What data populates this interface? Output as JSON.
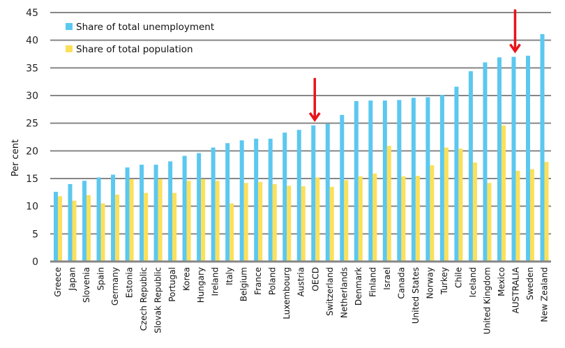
{
  "chart_data": {
    "type": "bar",
    "title": "",
    "xlabel": "",
    "ylabel": "Per cent",
    "ylim": [
      0,
      45
    ],
    "yticks": [
      0,
      5,
      10,
      15,
      20,
      25,
      30,
      35,
      40,
      45
    ],
    "grid": true,
    "legend_position": "top-left",
    "categories": [
      "Greece",
      "Japan",
      "Slovenia",
      "Spain",
      "Germany",
      "Estonia",
      "Czech Republic",
      "Slovak Republic",
      "Portugal",
      "Korea",
      "Hungary",
      "Ireland",
      "Italy",
      "Belgium",
      "France",
      "Poland",
      "Luxembourg",
      "Austria",
      "OECD",
      "Switzerland",
      "Netherlands",
      "Denmark",
      "Finland",
      "Israel",
      "Canada",
      "United States",
      "Norway",
      "Turkey",
      "Chile",
      "Iceland",
      "United Kingdom",
      "Mexico",
      "AUSTRALIA",
      "Sweden",
      "New Zealand"
    ],
    "series": [
      {
        "name": "Share of total unemployment",
        "color": "#5bc8ef",
        "values": [
          12.6,
          14.0,
          14.6,
          15.2,
          15.7,
          17.0,
          17.5,
          17.5,
          18.1,
          19.1,
          19.6,
          20.6,
          21.4,
          21.9,
          22.2,
          22.2,
          23.3,
          23.8,
          24.6,
          24.9,
          26.5,
          29.0,
          29.1,
          29.1,
          29.2,
          29.6,
          29.7,
          30.1,
          31.6,
          34.4,
          36.0,
          36.9,
          37.0,
          37.2,
          41.1
        ]
      },
      {
        "name": "Share of total population",
        "color": "#fbe05a",
        "values": [
          11.8,
          11.0,
          12.0,
          10.5,
          12.1,
          14.9,
          12.4,
          14.9,
          12.4,
          14.6,
          14.9,
          14.6,
          10.5,
          14.2,
          14.4,
          14.0,
          13.7,
          13.6,
          15.2,
          13.5,
          14.7,
          15.4,
          15.9,
          20.9,
          15.4,
          15.5,
          17.4,
          20.6,
          20.4,
          17.9,
          14.2,
          24.6,
          16.4,
          16.7,
          18.0
        ]
      }
    ],
    "annotations": [
      {
        "type": "arrow",
        "target": "OECD",
        "color": "#e8141b"
      },
      {
        "type": "arrow",
        "target": "AUSTRALIA",
        "color": "#e8141b"
      }
    ]
  }
}
